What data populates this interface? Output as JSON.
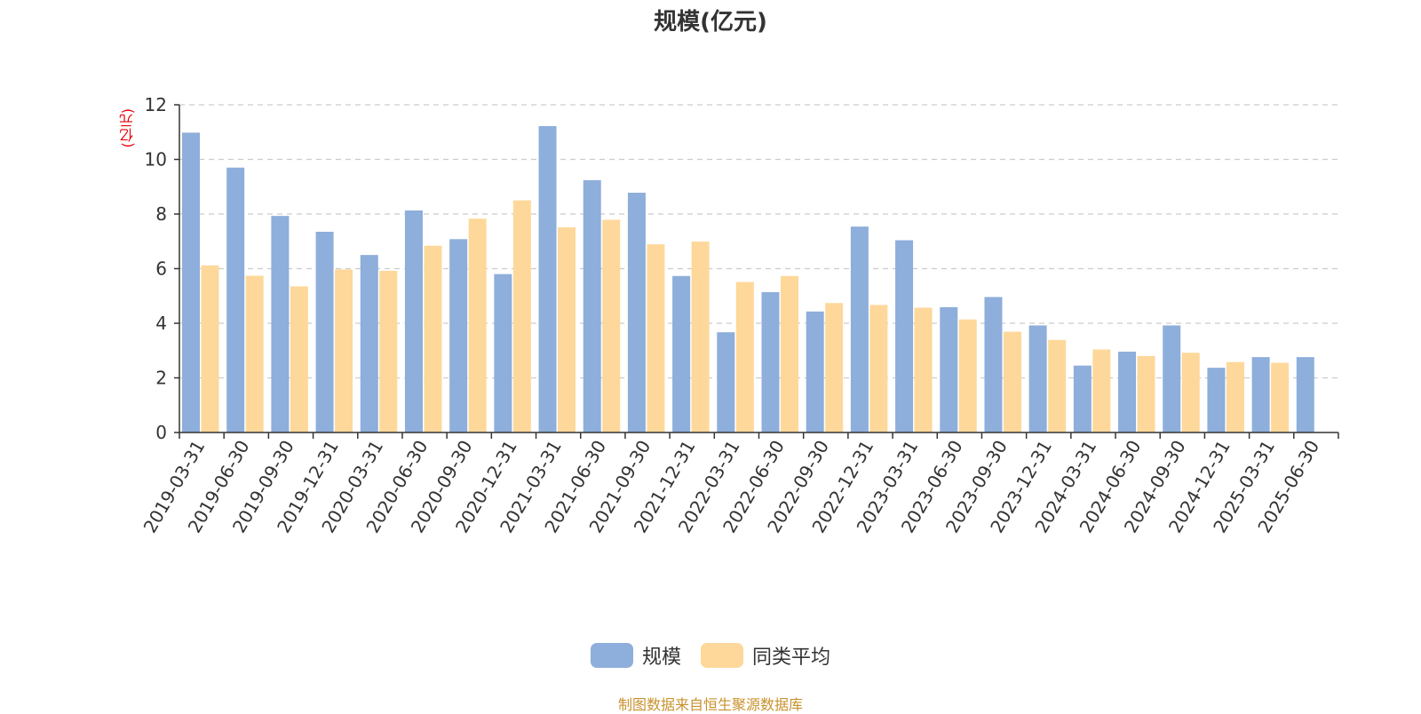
{
  "chart_data": {
    "type": "bar",
    "title": "规模(亿元)",
    "ylabel": "(亿元)",
    "xlabel": "",
    "ylim": [
      0,
      12
    ],
    "yticks": [
      0,
      2,
      4,
      6,
      8,
      10,
      12
    ],
    "grid": true,
    "legend_position": "bottom-center",
    "categories": [
      "2019-03-31",
      "2019-06-30",
      "2019-09-30",
      "2019-12-31",
      "2020-03-31",
      "2020-06-30",
      "2020-09-30",
      "2020-12-31",
      "2021-03-31",
      "2021-06-30",
      "2021-09-30",
      "2021-12-31",
      "2022-03-31",
      "2022-06-30",
      "2022-09-30",
      "2022-12-31",
      "2023-03-31",
      "2023-06-30",
      "2023-09-30",
      "2023-12-31",
      "2024-03-31",
      "2024-06-30",
      "2024-09-30",
      "2024-12-31",
      "2025-03-31",
      "2025-06-30"
    ],
    "series": [
      {
        "name": "规模",
        "color": "#8eaedb",
        "values": [
          10.98,
          9.7,
          7.93,
          7.35,
          6.5,
          8.13,
          7.08,
          5.8,
          11.22,
          9.24,
          8.78,
          5.73,
          3.67,
          5.14,
          4.43,
          7.54,
          7.04,
          4.59,
          4.96,
          3.92,
          2.45,
          2.96,
          3.92,
          2.37,
          2.76,
          2.76
        ]
      },
      {
        "name": "同类平均",
        "color": "#fdd89a",
        "values": [
          6.12,
          5.74,
          5.35,
          5.97,
          5.92,
          6.84,
          7.83,
          8.5,
          7.51,
          7.79,
          6.89,
          6.99,
          5.51,
          5.73,
          4.74,
          4.67,
          4.57,
          4.14,
          3.69,
          3.39,
          3.04,
          2.8,
          2.92,
          2.58,
          2.55,
          null
        ]
      }
    ]
  },
  "footer": {
    "source": "制图数据来自恒生聚源数据库"
  }
}
